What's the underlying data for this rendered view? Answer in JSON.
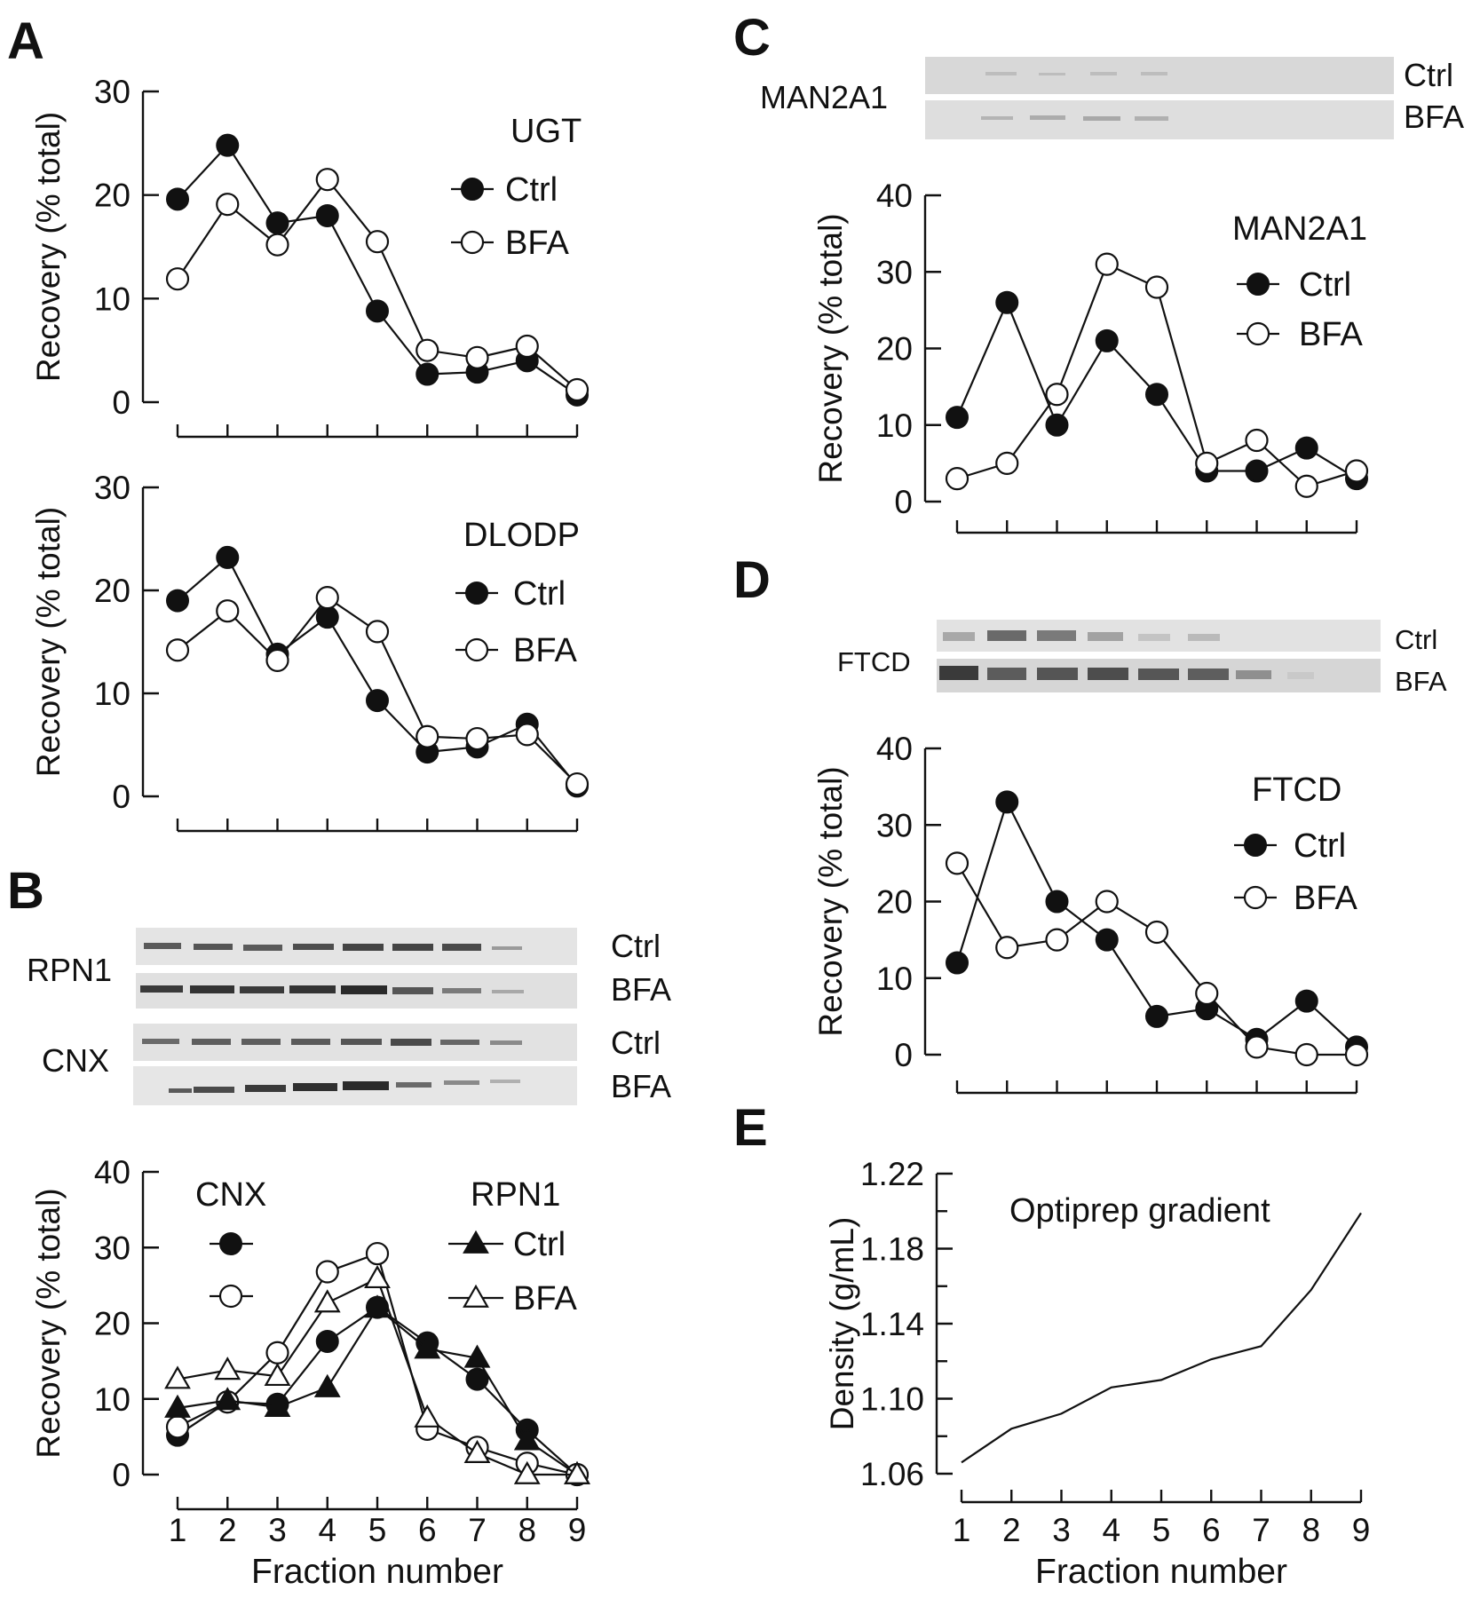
{
  "panel_labels": {
    "a": "A",
    "b": "B",
    "c": "C",
    "d": "D",
    "e": "E"
  },
  "legend": {
    "ctrl": "Ctrl",
    "bfa": "BFA"
  },
  "blots": {
    "man2a1": {
      "name": "MAN2A1",
      "rows": [
        "Ctrl",
        "BFA"
      ]
    },
    "ftcd": {
      "name": "FTCD",
      "rows": [
        "Ctrl",
        "BFA"
      ]
    },
    "rpn1": {
      "name": "RPN1",
      "rows": [
        "Ctrl",
        "BFA"
      ]
    },
    "cnx": {
      "name": "CNX",
      "rows": [
        "Ctrl",
        "BFA"
      ]
    }
  },
  "chart_data": [
    {
      "id": "ugt",
      "panel": "A",
      "type": "line",
      "title": "UGT",
      "xlabel": "",
      "ylabel": "Recovery (% total)",
      "x": [
        1,
        2,
        3,
        4,
        5,
        6,
        7,
        8,
        9
      ],
      "xtick_labels_shown": false,
      "ylim": [
        0,
        30
      ],
      "yticks": [
        0,
        10,
        20,
        30
      ],
      "series": [
        {
          "name": "Ctrl",
          "marker": "filled-circle",
          "values": [
            19.6,
            24.8,
            17.3,
            18.0,
            8.8,
            2.7,
            2.9,
            4.0,
            0.7
          ]
        },
        {
          "name": "BFA",
          "marker": "open-circle",
          "values": [
            11.9,
            19.1,
            15.2,
            21.5,
            15.5,
            5.0,
            4.3,
            5.4,
            1.2
          ]
        }
      ]
    },
    {
      "id": "dlodp",
      "panel": "A",
      "type": "line",
      "title": "DLODP",
      "xlabel": "",
      "ylabel": "Recovery (% total)",
      "x": [
        1,
        2,
        3,
        4,
        5,
        6,
        7,
        8,
        9
      ],
      "xtick_labels_shown": false,
      "ylim": [
        0,
        30
      ],
      "yticks": [
        0,
        10,
        20,
        30
      ],
      "series": [
        {
          "name": "Ctrl",
          "marker": "filled-circle",
          "values": [
            19.0,
            23.2,
            13.8,
            17.4,
            9.3,
            4.3,
            4.8,
            7.0,
            1.0
          ]
        },
        {
          "name": "BFA",
          "marker": "open-circle",
          "values": [
            14.2,
            18.0,
            13.2,
            19.3,
            16.0,
            5.8,
            5.6,
            6.0,
            1.2
          ]
        }
      ]
    },
    {
      "id": "cnx_rpn1",
      "panel": "B",
      "type": "line",
      "title": "",
      "xlabel": "Fraction number",
      "ylabel": "Recovery (% total)",
      "x": [
        1,
        2,
        3,
        4,
        5,
        6,
        7,
        8,
        9
      ],
      "xtick_labels_shown": true,
      "ylim": [
        0,
        40
      ],
      "yticks": [
        0,
        10,
        20,
        30,
        40
      ],
      "legend_groups": {
        "cnx": "CNX",
        "rpn1": "RPN1"
      },
      "series": [
        {
          "name": "CNX Ctrl",
          "marker": "filled-circle",
          "values": [
            5.2,
            9.6,
            9.3,
            17.6,
            22.1,
            17.4,
            12.6,
            5.9,
            0.0
          ]
        },
        {
          "name": "CNX BFA",
          "marker": "open-circle",
          "values": [
            6.3,
            9.6,
            16.1,
            26.8,
            29.2,
            6.0,
            3.6,
            1.5,
            0.0
          ]
        },
        {
          "name": "RPN1 Ctrl",
          "marker": "filled-triangle",
          "values": [
            8.8,
            9.8,
            8.9,
            11.5,
            22.0,
            16.6,
            15.4,
            4.5,
            0.0
          ]
        },
        {
          "name": "RPN1 BFA",
          "marker": "open-triangle",
          "values": [
            12.6,
            13.8,
            13.0,
            22.7,
            25.9,
            7.5,
            2.8,
            0.0,
            0.0
          ]
        }
      ]
    },
    {
      "id": "man2a1",
      "panel": "C",
      "type": "line",
      "title": "MAN2A1",
      "xlabel": "",
      "ylabel": "Recovery (% total)",
      "x": [
        1,
        2,
        3,
        4,
        5,
        6,
        7,
        8,
        9
      ],
      "xtick_labels_shown": false,
      "ylim": [
        0,
        40
      ],
      "yticks": [
        0,
        10,
        20,
        30,
        40
      ],
      "series": [
        {
          "name": "Ctrl",
          "marker": "filled-circle",
          "values": [
            11,
            26,
            10,
            21,
            14,
            4,
            4,
            7,
            3
          ]
        },
        {
          "name": "BFA",
          "marker": "open-circle",
          "values": [
            3,
            5,
            14,
            31,
            28,
            5,
            8,
            2,
            4
          ]
        }
      ]
    },
    {
      "id": "ftcd",
      "panel": "D",
      "type": "line",
      "title": "FTCD",
      "xlabel": "",
      "ylabel": "Recovery (% total)",
      "x": [
        1,
        2,
        3,
        4,
        5,
        6,
        7,
        8,
        9
      ],
      "xtick_labels_shown": false,
      "ylim": [
        0,
        40
      ],
      "yticks": [
        0,
        10,
        20,
        30,
        40
      ],
      "series": [
        {
          "name": "Ctrl",
          "marker": "filled-circle",
          "values": [
            12,
            33,
            20,
            15,
            5,
            6,
            2,
            7,
            1
          ]
        },
        {
          "name": "BFA",
          "marker": "open-circle",
          "values": [
            25,
            14,
            15,
            20,
            16,
            8,
            1,
            0,
            0
          ]
        }
      ]
    },
    {
      "id": "density",
      "panel": "E",
      "type": "line",
      "title": "Optiprep gradient",
      "xlabel": "Fraction number",
      "ylabel": "Density (g/mL)",
      "x": [
        1,
        2,
        3,
        4,
        5,
        6,
        7,
        8,
        9
      ],
      "xtick_labels_shown": true,
      "ylim": [
        1.06,
        1.22
      ],
      "yticks": [
        "1.06",
        "1.10",
        "1.14",
        "1.18",
        "1.22"
      ],
      "series": [
        {
          "name": "",
          "marker": "none",
          "values": [
            1.066,
            1.084,
            1.092,
            1.106,
            1.11,
            1.121,
            1.128,
            1.158,
            1.199
          ]
        }
      ]
    }
  ]
}
